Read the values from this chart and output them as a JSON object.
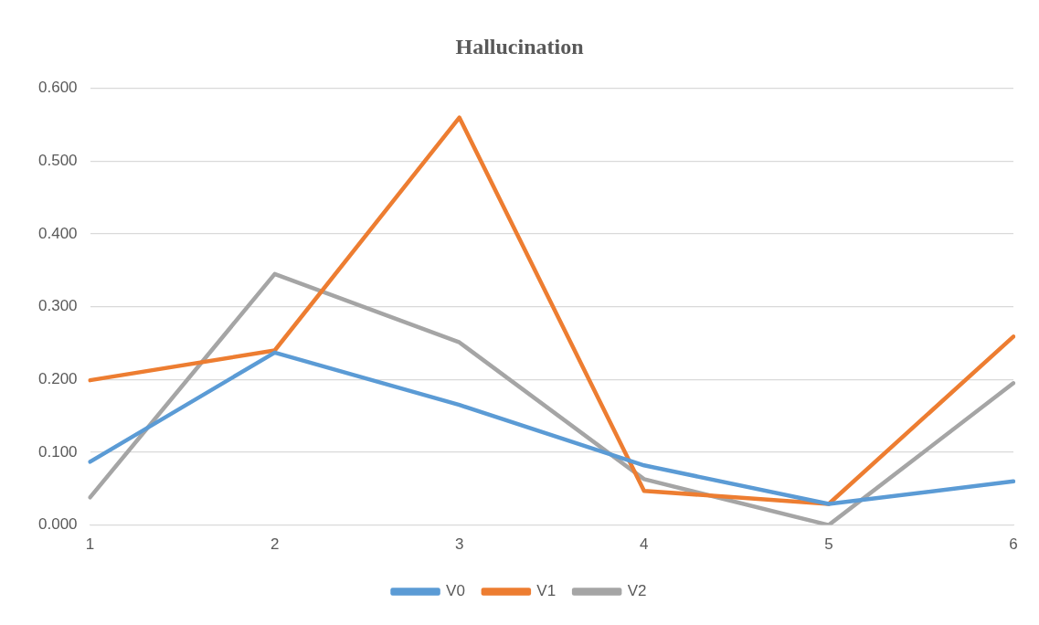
{
  "chart_data": {
    "type": "line",
    "title": "Hallucination",
    "categories": [
      "1",
      "2",
      "3",
      "4",
      "5",
      "6"
    ],
    "series": [
      {
        "name": "V0",
        "color": "#5b9bd5",
        "values": [
          0.087,
          0.237,
          0.165,
          0.082,
          0.029,
          0.06
        ]
      },
      {
        "name": "V1",
        "color": "#ed7d31",
        "values": [
          0.199,
          0.24,
          0.56,
          0.047,
          0.029,
          0.259
        ]
      },
      {
        "name": "V2",
        "color": "#a5a5a5",
        "values": [
          0.038,
          0.345,
          0.251,
          0.063,
          0.0,
          0.195
        ]
      }
    ],
    "ylim": [
      0,
      0.6
    ],
    "yticks": [
      {
        "value": 0,
        "label": "0.000"
      },
      {
        "value": 0.1,
        "label": "0.100"
      },
      {
        "value": 0.2,
        "label": "0.200"
      },
      {
        "value": 0.3,
        "label": "0.300"
      },
      {
        "value": 0.4,
        "label": "0.400"
      },
      {
        "value": 0.5,
        "label": "0.500"
      },
      {
        "value": 0.6,
        "label": "0.600"
      }
    ],
    "grid": "y",
    "legend": "bottom",
    "marker": "none",
    "line_style": "solid"
  }
}
